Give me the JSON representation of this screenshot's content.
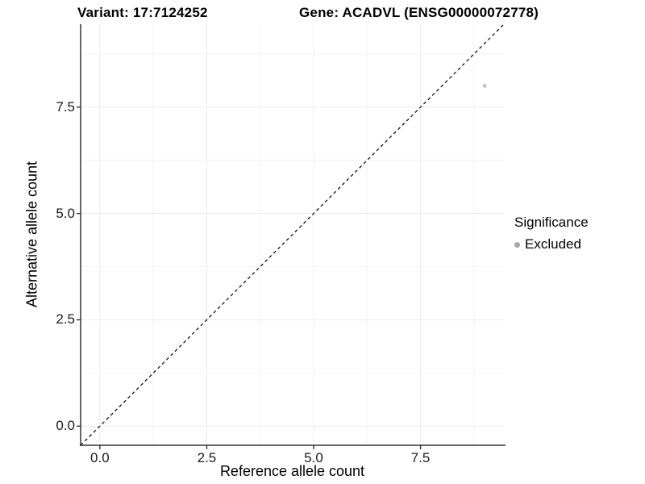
{
  "chart_data": {
    "type": "scatter",
    "title_left": "Variant: 17:7124252",
    "title_right": "Gene: ACADVL (ENSG00000072778)",
    "xlabel": "Reference allele count",
    "ylabel": "Alternative allele count",
    "xlim": [
      -0.45,
      9.45
    ],
    "ylim": [
      -0.45,
      9.45
    ],
    "x_tick_values": [
      0,
      2.5,
      5,
      7.5
    ],
    "x_tick_labels": [
      "0.0",
      "2.5",
      "5.0",
      "7.5"
    ],
    "y_tick_values": [
      0,
      2.5,
      5,
      7.5
    ],
    "y_tick_labels": [
      "0.0",
      "2.5",
      "5.0",
      "7.5"
    ],
    "x_minor_tick_values": [
      1.25,
      3.75,
      6.25,
      8.75
    ],
    "y_minor_tick_values": [
      1.25,
      3.75,
      6.25,
      8.75
    ],
    "grid": true,
    "reference_line": {
      "type": "identity",
      "equation": "y = x",
      "style": "dashed",
      "color": "#000000"
    },
    "series": [
      {
        "name": "Excluded",
        "color": "#c4c4c4",
        "points": [
          {
            "x": 9,
            "y": 8
          }
        ]
      }
    ],
    "legend": {
      "title": "Significance",
      "position": "right",
      "entries": [
        {
          "label": "Excluded",
          "marker_color": "#a6a6a6"
        }
      ]
    },
    "colors": {
      "grid_major": "#ebebeb",
      "grid_minor": "#f4f4f4",
      "axis_line": "#333333",
      "tick_mark": "#333333",
      "tick_label": "#1a1a1a",
      "background": "#ffffff"
    }
  }
}
